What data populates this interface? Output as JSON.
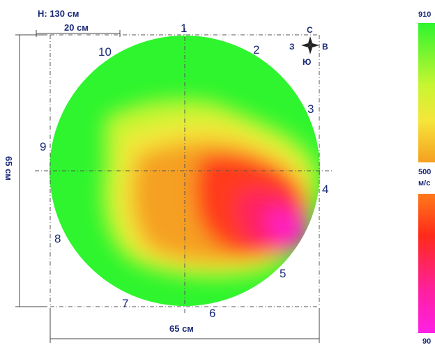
{
  "header": {
    "height_label": "H: 130 см"
  },
  "scale": {
    "bar_label": "20 см"
  },
  "dimensions": {
    "width_label": "65 см",
    "height_label": "65 см"
  },
  "compass": {
    "north": "С",
    "east": "В",
    "south": "Ю",
    "west": "З"
  },
  "sensors": [
    "1",
    "2",
    "3",
    "4",
    "5",
    "6",
    "7",
    "8",
    "9",
    "10"
  ],
  "legend": {
    "top_value": "910",
    "mid_value": "500",
    "mid_unit": "м/с",
    "bottom_value": "90",
    "colors": {
      "green": "#2ef52e",
      "yellow_green": "#c8f532",
      "yellow": "#f5f53a",
      "orange": "#f5a020",
      "red": "#ff2a1a",
      "magenta": "#ff20c0",
      "pink": "#ff20e6"
    }
  }
}
